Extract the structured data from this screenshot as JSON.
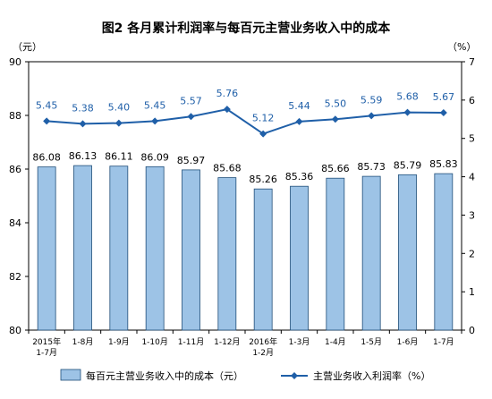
{
  "chart_data": {
    "type": "bar",
    "title": "图2  各月累计利润率与每百元主营业务收入中的成本",
    "left_unit": "（元）",
    "right_unit": "（%）",
    "categories": [
      [
        "2015年",
        "1-7月"
      ],
      [
        "1-8月"
      ],
      [
        "1-9月"
      ],
      [
        "1-10月"
      ],
      [
        "1-11月"
      ],
      [
        "1-12月"
      ],
      [
        "2016年",
        "1-2月"
      ],
      [
        "1-3月"
      ],
      [
        "1-4月"
      ],
      [
        "1-5月"
      ],
      [
        "1-6月"
      ],
      [
        "1-7月"
      ]
    ],
    "left_axis": {
      "min": 80,
      "max": 90,
      "ticks": [
        "80",
        "82",
        "84",
        "86",
        "88",
        "90"
      ]
    },
    "right_axis": {
      "min": 0,
      "max": 7,
      "ticks": [
        "0",
        "1",
        "2",
        "3",
        "4",
        "5",
        "6",
        "7"
      ]
    },
    "series": [
      {
        "name": "每百元主营业务收入中的成本（元）",
        "type": "bar",
        "axis": "left",
        "color": "#9dc3e6",
        "values": [
          86.08,
          86.13,
          86.11,
          86.09,
          85.97,
          85.68,
          85.26,
          85.36,
          85.66,
          85.73,
          85.79,
          85.83
        ],
        "labels": [
          "86.08",
          "86.13",
          "86.11",
          "86.09",
          "85.97",
          "85.68",
          "85.26",
          "85.36",
          "85.66",
          "85.73",
          "85.79",
          "85.83"
        ]
      },
      {
        "name": "主营业务收入利润率（%）",
        "type": "line",
        "axis": "right",
        "color": "#1f5fa8",
        "values": [
          5.45,
          5.38,
          5.4,
          5.45,
          5.57,
          5.76,
          5.12,
          5.44,
          5.5,
          5.59,
          5.68,
          5.67
        ],
        "labels": [
          "5.45",
          "5.38",
          "5.40",
          "5.45",
          "5.57",
          "5.76",
          "5.12",
          "5.44",
          "5.50",
          "5.59",
          "5.68",
          "5.67"
        ]
      }
    ],
    "grid": false,
    "legend_position": "bottom"
  }
}
